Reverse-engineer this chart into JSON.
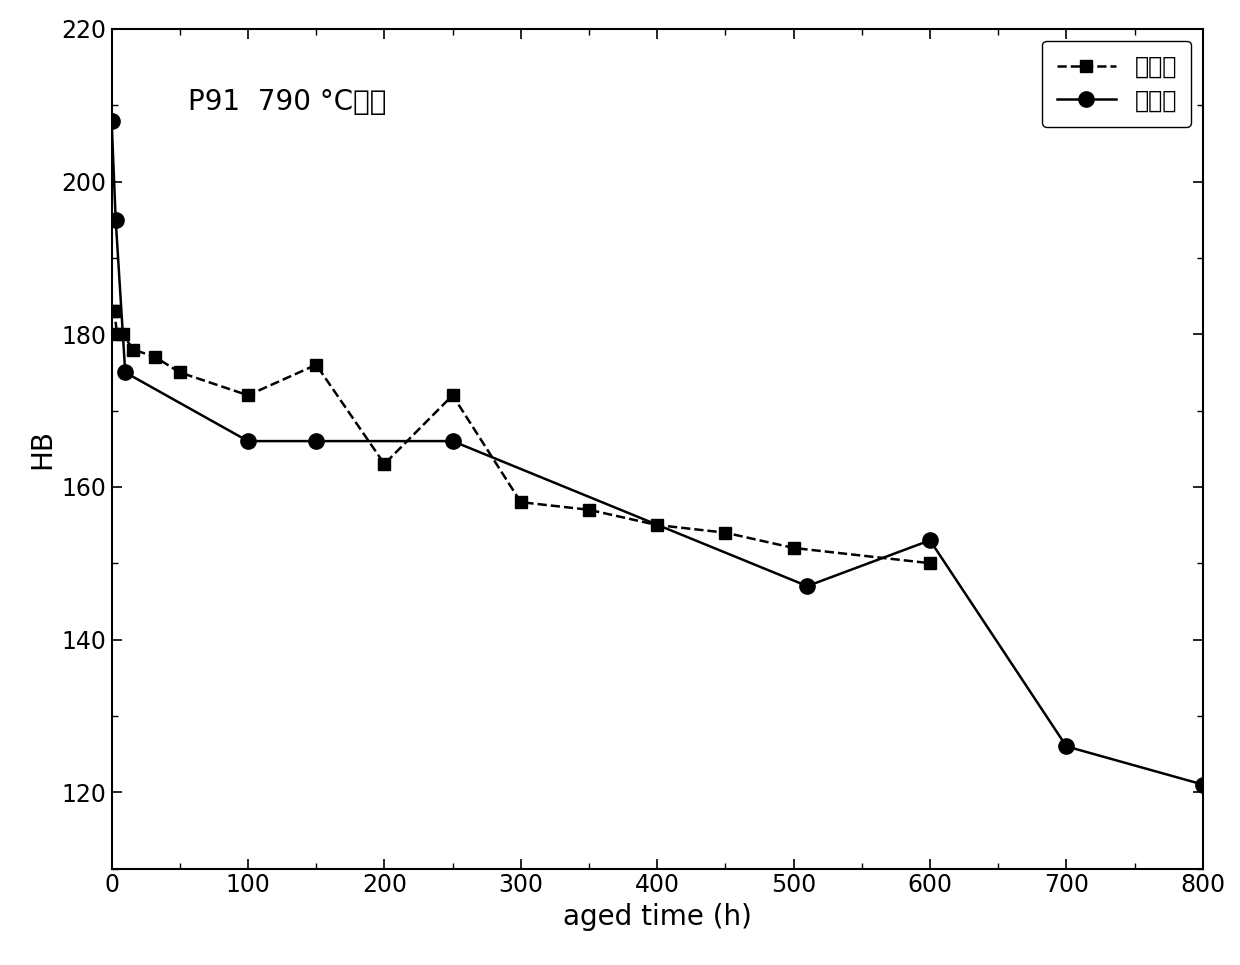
{
  "title": "P91  790 °C时效",
  "xlabel": "aged time (h)",
  "ylabel": "HB",
  "xlim": [
    0,
    800
  ],
  "ylim": [
    110,
    220
  ],
  "yticks": [
    120,
    140,
    160,
    180,
    200,
    220
  ],
  "xticks": [
    0,
    100,
    200,
    300,
    400,
    500,
    600,
    700,
    800
  ],
  "series1": {
    "label": "第一批",
    "x": [
      0,
      2,
      4,
      8,
      16,
      32,
      50,
      100,
      150,
      200,
      250,
      300,
      350,
      400,
      450,
      500,
      600
    ],
    "y": [
      183,
      183,
      180,
      180,
      178,
      177,
      175,
      172,
      176,
      163,
      172,
      158,
      157,
      155,
      154,
      152,
      150
    ],
    "marker": "s",
    "linestyle": "--"
  },
  "series2": {
    "label": "第二批",
    "x": [
      0,
      3,
      10,
      100,
      150,
      250,
      510,
      600,
      700,
      800
    ],
    "y": [
      208,
      195,
      175,
      166,
      166,
      166,
      147,
      153,
      126,
      121
    ],
    "marker": "o",
    "linestyle": "-"
  },
  "color": "#000000",
  "background": "#ffffff",
  "legend_loc": "upper right",
  "title_fontsize": 20,
  "axis_label_fontsize": 20,
  "tick_fontsize": 17,
  "legend_fontsize": 17,
  "marker_size_s": 9,
  "marker_size_o": 11,
  "linewidth": 1.8
}
